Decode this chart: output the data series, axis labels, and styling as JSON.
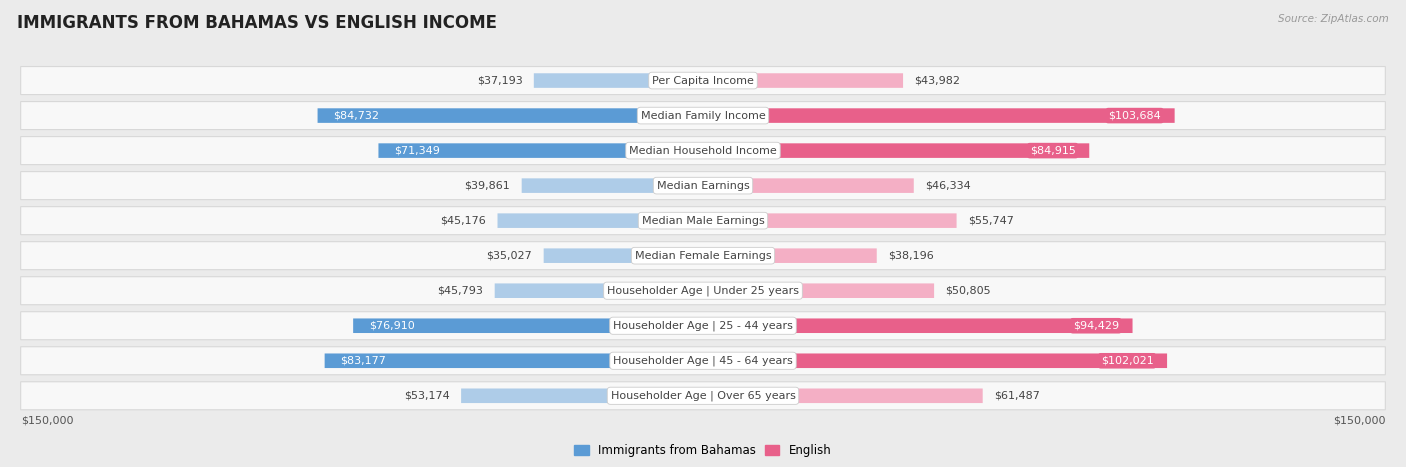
{
  "title": "IMMIGRANTS FROM BAHAMAS VS ENGLISH INCOME",
  "source": "Source: ZipAtlas.com",
  "categories": [
    "Per Capita Income",
    "Median Family Income",
    "Median Household Income",
    "Median Earnings",
    "Median Male Earnings",
    "Median Female Earnings",
    "Householder Age | Under 25 years",
    "Householder Age | 25 - 44 years",
    "Householder Age | 45 - 64 years",
    "Householder Age | Over 65 years"
  ],
  "bahamas_values": [
    37193,
    84732,
    71349,
    39861,
    45176,
    35027,
    45793,
    76910,
    83177,
    53174
  ],
  "english_values": [
    43982,
    103684,
    84915,
    46334,
    55747,
    38196,
    50805,
    94429,
    102021,
    61487
  ],
  "bahamas_labels": [
    "$37,193",
    "$84,732",
    "$71,349",
    "$39,861",
    "$45,176",
    "$35,027",
    "$45,793",
    "$76,910",
    "$83,177",
    "$53,174"
  ],
  "english_labels": [
    "$43,982",
    "$103,684",
    "$84,915",
    "$46,334",
    "$55,747",
    "$38,196",
    "$50,805",
    "$94,429",
    "$102,021",
    "$61,487"
  ],
  "bahamas_dark_threshold": 60000,
  "english_dark_threshold": 80000,
  "bahamas_color_dark": "#5b9bd5",
  "bahamas_color_light": "#aecce8",
  "english_color_dark": "#e8608a",
  "english_color_light": "#f4afc5",
  "max_value": 150000,
  "x_label_left": "$150,000",
  "x_label_right": "$150,000",
  "legend_bahamas": "Immigrants from Bahamas",
  "legend_english": "English",
  "figure_bg": "#ebebeb",
  "row_bg": "#f8f8f8",
  "row_border": "#d8d8d8",
  "title_color": "#222222",
  "label_color_dark": "#444444",
  "label_color_white": "#ffffff",
  "title_fontsize": 12,
  "value_fontsize": 8,
  "category_fontsize": 8,
  "axis_fontsize": 8,
  "source_fontsize": 7.5
}
